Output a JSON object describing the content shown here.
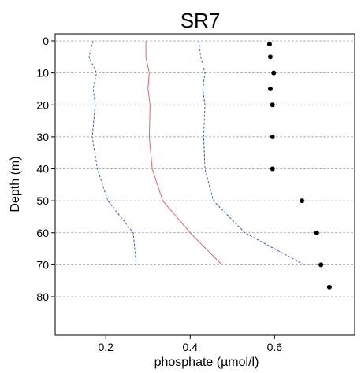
{
  "chart_data": {
    "type": "line",
    "title": "SR7",
    "xlabel": "phosphate (µmol/l)",
    "ylabel": "Depth (m)",
    "xlim": [
      0.08,
      0.79
    ],
    "ylim": [
      0,
      90
    ],
    "y_inverted": true,
    "x_ticks": [
      0.2,
      0.4,
      0.6
    ],
    "y_ticks": [
      0,
      10,
      20,
      30,
      40,
      50,
      60,
      70,
      80
    ],
    "grid": "horizontal-dashed",
    "series": [
      {
        "style": "solid",
        "color": "#e06666",
        "points": [
          [
            0.295,
            0
          ],
          [
            0.295,
            5
          ],
          [
            0.303,
            10
          ],
          [
            0.3,
            15
          ],
          [
            0.305,
            20
          ],
          [
            0.303,
            30
          ],
          [
            0.31,
            40
          ],
          [
            0.335,
            50
          ],
          [
            0.4,
            60
          ],
          [
            0.475,
            70
          ]
        ]
      },
      {
        "style": "dashed",
        "color": "#3b5bb5",
        "points": [
          [
            0.17,
            0
          ],
          [
            0.16,
            5
          ],
          [
            0.178,
            10
          ],
          [
            0.17,
            15
          ],
          [
            0.175,
            20
          ],
          [
            0.168,
            30
          ],
          [
            0.18,
            40
          ],
          [
            0.205,
            50
          ],
          [
            0.265,
            60
          ],
          [
            0.272,
            70
          ]
        ]
      },
      {
        "style": "dashed",
        "color": "#3b5bb5",
        "points": [
          [
            0.42,
            0
          ],
          [
            0.425,
            5
          ],
          [
            0.435,
            10
          ],
          [
            0.43,
            15
          ],
          [
            0.435,
            20
          ],
          [
            0.432,
            30
          ],
          [
            0.435,
            40
          ],
          [
            0.455,
            50
          ],
          [
            0.53,
            60
          ],
          [
            0.67,
            70
          ]
        ]
      },
      {
        "style": "dots",
        "color": "#000000",
        "points": [
          [
            0.588,
            1
          ],
          [
            0.59,
            5
          ],
          [
            0.598,
            10
          ],
          [
            0.59,
            15
          ],
          [
            0.595,
            20
          ],
          [
            0.595,
            30
          ],
          [
            0.595,
            40
          ],
          [
            0.665,
            50
          ],
          [
            0.7,
            60
          ],
          [
            0.71,
            70
          ],
          [
            0.73,
            77
          ]
        ]
      }
    ]
  }
}
